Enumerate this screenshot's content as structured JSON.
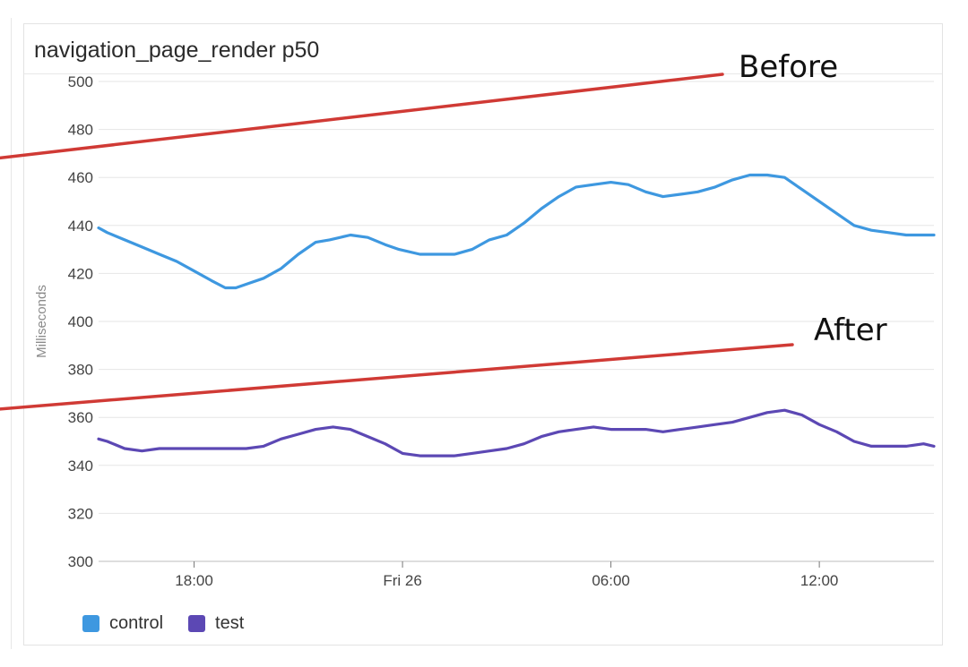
{
  "panel": {
    "title": "navigation_page_render p50"
  },
  "annotations": [
    {
      "text": "Before",
      "x": 5.15,
      "y": 458
    },
    {
      "text": "After",
      "x": 5.2,
      "y": 356
    }
  ],
  "colors": {
    "control": "#3e98e0",
    "test": "#5c48b4",
    "arrow": "#d03a35"
  },
  "chart_data": {
    "type": "line",
    "title": "navigation_page_render p50",
    "xlabel": "",
    "ylabel": "Milliseconds",
    "ylim": [
      300,
      500
    ],
    "yticks": [
      300,
      320,
      340,
      360,
      380,
      400,
      420,
      440,
      460,
      480,
      500
    ],
    "xlim": [
      15.25,
      39.3
    ],
    "xticks": [
      {
        "value": 18,
        "label": "18:00"
      },
      {
        "value": 24,
        "label": "Fri 26"
      },
      {
        "value": 30,
        "label": "06:00"
      },
      {
        "value": 36,
        "label": "12:00"
      }
    ],
    "grid": true,
    "legend": "bottom-left",
    "series": [
      {
        "name": "control",
        "x": [
          15.25,
          15.5,
          16.0,
          16.5,
          17.0,
          17.5,
          18.0,
          18.5,
          18.9,
          19.2,
          19.6,
          20.0,
          20.5,
          21.0,
          21.5,
          21.9,
          22.5,
          23.0,
          23.5,
          23.9,
          24.5,
          25.0,
          25.5,
          26.0,
          26.5,
          27.0,
          27.5,
          28.0,
          28.5,
          29.0,
          29.5,
          30.0,
          30.5,
          31.0,
          31.5,
          32.0,
          32.5,
          33.0,
          33.5,
          34.0,
          34.5,
          35.0,
          35.5,
          36.0,
          36.5,
          37.0,
          37.5,
          38.0,
          38.5,
          39.0,
          39.3
        ],
        "values": [
          439,
          437,
          434,
          431,
          428,
          425,
          421,
          417,
          414,
          414,
          416,
          418,
          422,
          428,
          433,
          434,
          436,
          435,
          432,
          430,
          428,
          428,
          428,
          430,
          434,
          436,
          441,
          447,
          452,
          456,
          457,
          458,
          457,
          454,
          452,
          453,
          454,
          456,
          459,
          461,
          461,
          460,
          455,
          450,
          445,
          440,
          438,
          437,
          436,
          436,
          436
        ]
      },
      {
        "name": "test",
        "x": [
          15.25,
          15.5,
          16.0,
          16.5,
          17.0,
          17.5,
          18.0,
          18.5,
          19.0,
          19.5,
          20.0,
          20.5,
          21.0,
          21.5,
          22.0,
          22.5,
          23.0,
          23.5,
          24.0,
          24.5,
          25.0,
          25.5,
          26.0,
          26.5,
          27.0,
          27.5,
          28.0,
          28.5,
          29.0,
          29.5,
          30.0,
          30.5,
          31.0,
          31.5,
          32.0,
          32.5,
          33.0,
          33.5,
          34.0,
          34.5,
          35.0,
          35.5,
          36.0,
          36.5,
          37.0,
          37.5,
          38.0,
          38.5,
          39.0,
          39.3
        ],
        "values": [
          351,
          350,
          347,
          346,
          347,
          347,
          347,
          347,
          347,
          347,
          348,
          351,
          353,
          355,
          356,
          355,
          352,
          349,
          345,
          344,
          344,
          344,
          345,
          346,
          347,
          349,
          352,
          354,
          355,
          356,
          355,
          355,
          355,
          354,
          355,
          356,
          357,
          358,
          360,
          362,
          363,
          361,
          357,
          354,
          350,
          348,
          348,
          348,
          349,
          348
        ]
      }
    ]
  }
}
